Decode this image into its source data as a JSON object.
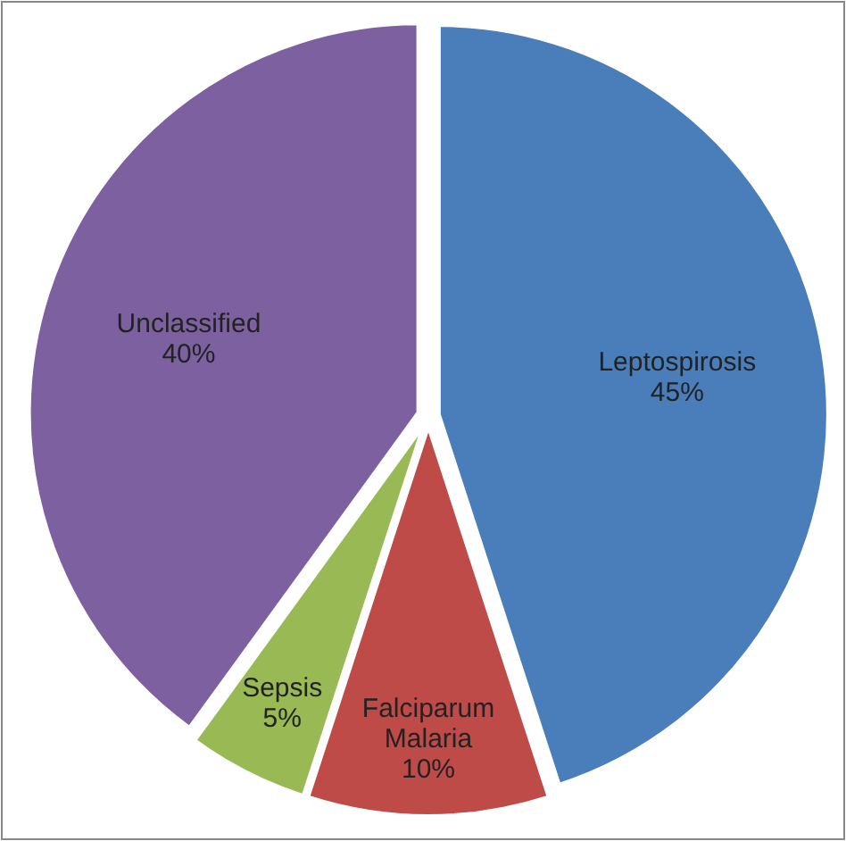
{
  "chart_data": {
    "type": "pie",
    "categories": [
      "Leptospirosis",
      "Falciparum Malaria",
      "Sepsis",
      "Unclassified"
    ],
    "values": [
      45,
      10,
      5,
      40
    ],
    "colors": [
      "#4a7ebb",
      "#be4b48",
      "#98b954",
      "#7d60a0"
    ],
    "value_labels": [
      "45%",
      "10%",
      "5%",
      "40%"
    ]
  }
}
